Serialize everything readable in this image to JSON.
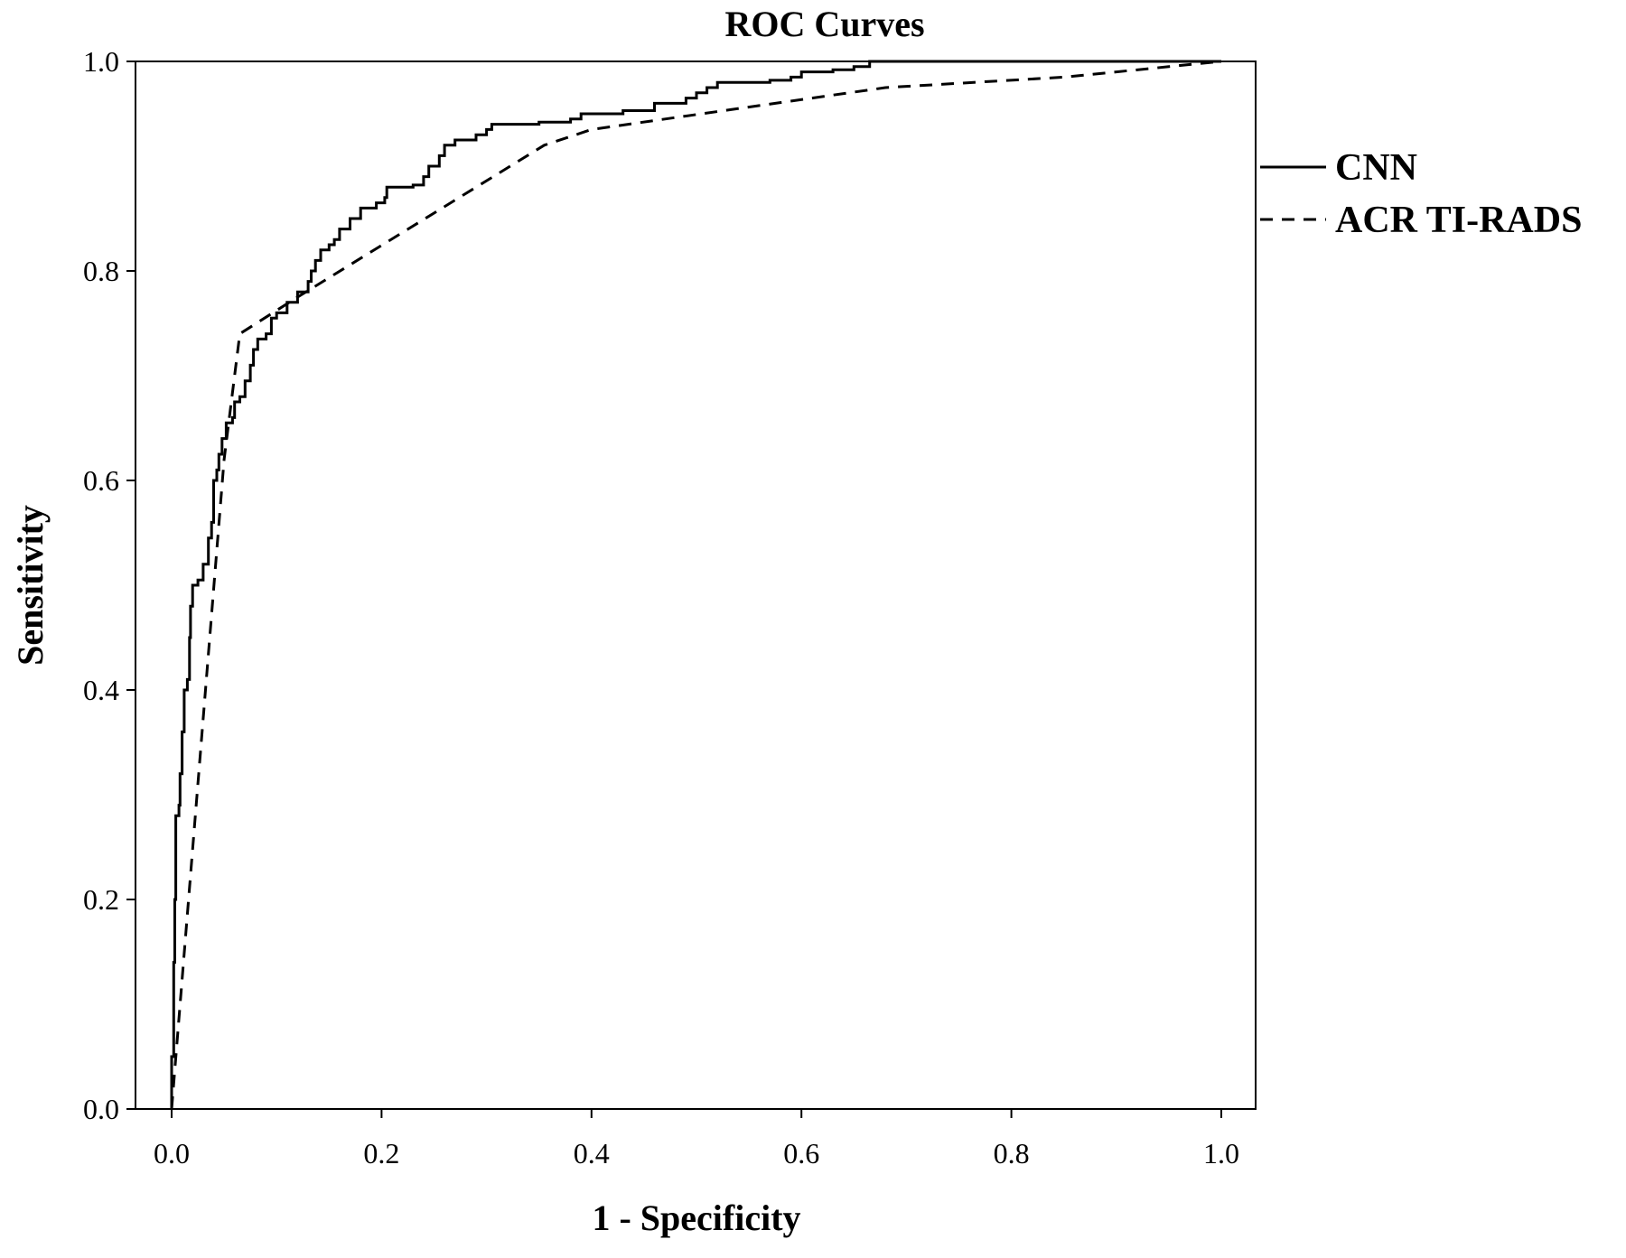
{
  "chart_data": {
    "type": "line",
    "title": "ROC Curves",
    "xlabel": "1 - Specificity",
    "ylabel": "Sensitivity",
    "xlim": [
      0,
      1
    ],
    "ylim": [
      0,
      1
    ],
    "grid": false,
    "legend": "right",
    "x_ticks": [
      "0.0",
      "0.2",
      "0.4",
      "0.6",
      "0.8",
      "1.0"
    ],
    "y_ticks": [
      "0.0",
      "0.2",
      "0.4",
      "0.6",
      "0.8",
      "1.0"
    ],
    "series": [
      {
        "name": "CNN",
        "style": "solid",
        "color": "#000000",
        "step": true,
        "points": [
          [
            0.0,
            0.0
          ],
          [
            0.0,
            0.05
          ],
          [
            0.002,
            0.14
          ],
          [
            0.003,
            0.2
          ],
          [
            0.004,
            0.28
          ],
          [
            0.007,
            0.29
          ],
          [
            0.008,
            0.32
          ],
          [
            0.01,
            0.36
          ],
          [
            0.012,
            0.4
          ],
          [
            0.015,
            0.41
          ],
          [
            0.017,
            0.45
          ],
          [
            0.018,
            0.48
          ],
          [
            0.02,
            0.5
          ],
          [
            0.025,
            0.505
          ],
          [
            0.03,
            0.52
          ],
          [
            0.035,
            0.545
          ],
          [
            0.038,
            0.56
          ],
          [
            0.04,
            0.6
          ],
          [
            0.043,
            0.61
          ],
          [
            0.045,
            0.625
          ],
          [
            0.048,
            0.64
          ],
          [
            0.052,
            0.655
          ],
          [
            0.058,
            0.66
          ],
          [
            0.06,
            0.675
          ],
          [
            0.065,
            0.68
          ],
          [
            0.07,
            0.695
          ],
          [
            0.075,
            0.71
          ],
          [
            0.078,
            0.725
          ],
          [
            0.082,
            0.735
          ],
          [
            0.09,
            0.74
          ],
          [
            0.095,
            0.755
          ],
          [
            0.1,
            0.76
          ],
          [
            0.11,
            0.77
          ],
          [
            0.12,
            0.78
          ],
          [
            0.13,
            0.79
          ],
          [
            0.133,
            0.8
          ],
          [
            0.137,
            0.81
          ],
          [
            0.142,
            0.82
          ],
          [
            0.15,
            0.825
          ],
          [
            0.155,
            0.83
          ],
          [
            0.16,
            0.84
          ],
          [
            0.17,
            0.85
          ],
          [
            0.18,
            0.86
          ],
          [
            0.195,
            0.865
          ],
          [
            0.203,
            0.87
          ],
          [
            0.205,
            0.88
          ],
          [
            0.215,
            0.88
          ],
          [
            0.23,
            0.882
          ],
          [
            0.24,
            0.89
          ],
          [
            0.245,
            0.9
          ],
          [
            0.255,
            0.91
          ],
          [
            0.26,
            0.92
          ],
          [
            0.27,
            0.925
          ],
          [
            0.29,
            0.93
          ],
          [
            0.3,
            0.935
          ],
          [
            0.305,
            0.94
          ],
          [
            0.35,
            0.942
          ],
          [
            0.38,
            0.945
          ],
          [
            0.39,
            0.95
          ],
          [
            0.43,
            0.953
          ],
          [
            0.46,
            0.96
          ],
          [
            0.49,
            0.965
          ],
          [
            0.5,
            0.97
          ],
          [
            0.51,
            0.975
          ],
          [
            0.52,
            0.98
          ],
          [
            0.57,
            0.982
          ],
          [
            0.59,
            0.985
          ],
          [
            0.6,
            0.99
          ],
          [
            0.63,
            0.992
          ],
          [
            0.65,
            0.995
          ],
          [
            0.665,
            1.0
          ],
          [
            1.0,
            1.0
          ]
        ]
      },
      {
        "name": "ACR TI-RADS",
        "style": "dashed",
        "color": "#000000",
        "step": false,
        "points": [
          [
            0.0,
            0.0
          ],
          [
            0.05,
            0.62
          ],
          [
            0.065,
            0.74
          ],
          [
            0.12,
            0.775
          ],
          [
            0.355,
            0.92
          ],
          [
            0.4,
            0.935
          ],
          [
            0.68,
            0.975
          ],
          [
            0.85,
            0.985
          ],
          [
            1.0,
            1.0
          ]
        ]
      }
    ]
  }
}
